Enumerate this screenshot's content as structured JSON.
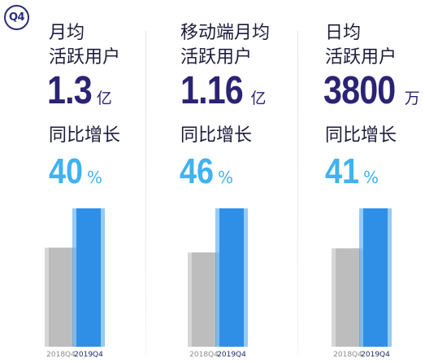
{
  "badge": "Q4",
  "colors": {
    "bar_2018": "#c8c8c8",
    "bar_2018_face": "#bdbdbd",
    "bar_2019": "#3aa0f0",
    "bar_2019_face": "#2f8fe6",
    "value_text": "#2b2373",
    "growth_text": "#40b2f0"
  },
  "chart_data": [
    {
      "type": "bar",
      "title": "月均\n活跃用户",
      "value_number": "1.3",
      "value_unit": "亿",
      "growth_label": "同比增长",
      "growth_number": "40",
      "growth_unit": "%",
      "categories": [
        "2018Q4",
        "2019Q4"
      ],
      "values": [
        0.93,
        1.3
      ],
      "unit": "亿"
    },
    {
      "type": "bar",
      "title": "移动端月均\n活跃用户",
      "value_number": "1.16",
      "value_unit": "亿",
      "growth_label": "同比增长",
      "growth_number": "46",
      "growth_unit": "%",
      "categories": [
        "2018Q4",
        "2019Q4"
      ],
      "values": [
        0.79,
        1.16
      ],
      "unit": "亿"
    },
    {
      "type": "bar",
      "title": "日均\n活跃用户",
      "value_number": "3800",
      "value_unit": "万",
      "growth_label": "同比增长",
      "growth_number": "41",
      "growth_unit": "%",
      "categories": [
        "2018Q4",
        "2019Q4"
      ],
      "values": [
        2700,
        3800
      ],
      "unit": "万"
    }
  ]
}
